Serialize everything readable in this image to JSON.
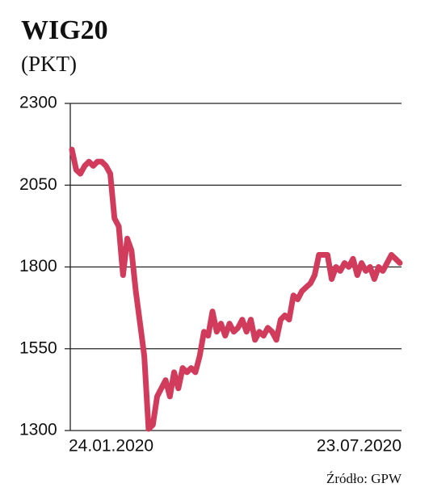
{
  "chart_data": {
    "type": "line",
    "title": "WIG20",
    "subtitle": "(PKT)",
    "source": "Źródło: GPW",
    "categories": [
      "24.01.2020",
      null,
      null,
      null,
      null,
      null,
      null,
      null,
      null,
      null,
      null,
      null,
      null,
      null,
      null,
      null,
      null,
      null,
      null,
      null,
      null,
      null,
      null,
      null,
      null,
      null,
      null,
      null,
      null,
      null,
      null,
      null,
      null,
      null,
      null,
      null,
      null,
      null,
      null,
      null,
      null,
      null,
      null,
      null,
      null,
      null,
      null,
      null,
      null,
      null,
      null,
      null,
      null,
      null,
      null,
      null,
      null,
      null,
      null,
      null,
      null,
      null,
      null,
      null,
      null,
      null,
      null,
      null,
      null,
      null,
      null,
      null,
      null,
      null,
      null,
      null,
      null,
      "23.07.2020"
    ],
    "values": [
      2159,
      2097,
      2085,
      2109,
      2122,
      2109,
      2122,
      2122,
      2109,
      2085,
      1949,
      1924,
      1775,
      1887,
      1850,
      1726,
      1627,
      1528,
      1305,
      1317,
      1404,
      1429,
      1454,
      1404,
      1478,
      1429,
      1491,
      1478,
      1491,
      1478,
      1528,
      1602,
      1590,
      1664,
      1602,
      1627,
      1590,
      1627,
      1602,
      1614,
      1639,
      1602,
      1639,
      1577,
      1602,
      1590,
      1614,
      1602,
      1577,
      1639,
      1652,
      1639,
      1713,
      1701,
      1726,
      1738,
      1750,
      1775,
      1837,
      1837,
      1837,
      1763,
      1800,
      1788,
      1812,
      1800,
      1825,
      1775,
      1812,
      1788,
      1800,
      1763,
      1800,
      1788,
      1812,
      1837,
      1825,
      1812
    ],
    "color": "#d23c5c",
    "ylim": [
      1300,
      2300
    ],
    "yticks": [
      1300,
      1550,
      1800,
      2050,
      2300
    ],
    "grid": true
  }
}
